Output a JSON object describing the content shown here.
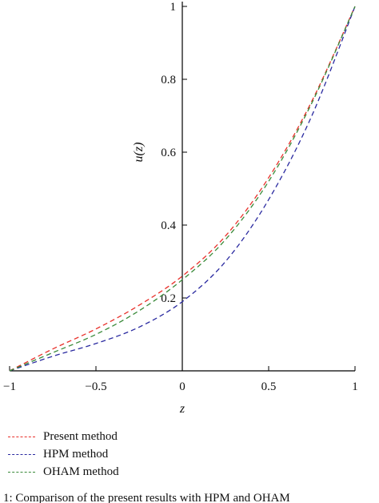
{
  "chart_data": {
    "type": "line",
    "xlabel": "z",
    "ylabel": "u(z)",
    "xlim": [
      -1,
      1
    ],
    "ylim": [
      0,
      1
    ],
    "x_ticks": [
      "−1",
      "−0.5",
      "0",
      "0.5",
      "1"
    ],
    "x_tick_values": [
      -1,
      -0.5,
      0,
      0.5,
      1
    ],
    "y_ticks": [
      "0.2",
      "0.4",
      "0.6",
      "0.8",
      "1"
    ],
    "y_tick_values": [
      0.2,
      0.4,
      0.6,
      0.8,
      1
    ],
    "grid": false,
    "legend_position": "bottom-left",
    "x": [
      -1,
      -0.75,
      -0.5,
      -0.25,
      0,
      0.25,
      0.5,
      0.75,
      1
    ],
    "series": [
      {
        "name": "Present method",
        "color": "#e8302a",
        "dash": "dashed",
        "values": [
          0.0,
          0.06,
          0.115,
          0.18,
          0.26,
          0.37,
          0.53,
          0.74,
          1.0
        ]
      },
      {
        "name": "HPM method",
        "color": "#2a2aa0",
        "dash": "dashed",
        "values": [
          0.0,
          0.04,
          0.075,
          0.12,
          0.19,
          0.3,
          0.47,
          0.7,
          1.0
        ]
      },
      {
        "name": "OHAM method",
        "color": "#3a8a3a",
        "dash": "dashed",
        "values": [
          0.0,
          0.05,
          0.1,
          0.165,
          0.25,
          0.36,
          0.52,
          0.735,
          1.0
        ]
      }
    ]
  },
  "caption": "1: Comparison of the present results with HPM and OHAM"
}
